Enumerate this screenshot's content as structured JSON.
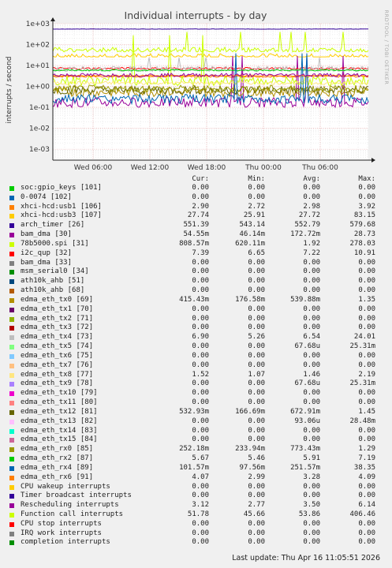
{
  "title": "Individual interrupts - by day",
  "ylabel": "interrupts / second",
  "side_label": "RRDTOOL / TOBI OETIKER",
  "footer": "Last update: Thu Apr 16 11:05:51 2026",
  "headers": {
    "cur": "Cur:",
    "min": "Min:",
    "avg": "Avg:",
    "max": "Max:"
  },
  "chart_data": {
    "type": "line",
    "title": "Individual interrupts - by day",
    "ylabel": "interrupts / second",
    "yscale": "log",
    "ylim": [
      0.0003,
      1000
    ],
    "y_ticks": [
      "1e+03",
      "1e+02",
      "1e+01",
      "1e+00",
      "1e-01",
      "1e-02",
      "1e-03"
    ],
    "y_tick_values": [
      1000,
      100,
      10,
      1,
      0.1,
      0.01,
      0.001
    ],
    "x_ticks": [
      "Wed 06:00",
      "Wed 12:00",
      "Wed 18:00",
      "Thu 00:00",
      "Thu 06:00"
    ],
    "grid": true,
    "legend": "bottom",
    "series": [
      {
        "name": "soc:gpio_keys [101]",
        "color": "#00cc00",
        "cur": "0.00",
        "min": "0.00",
        "avg": "0.00",
        "max": "0.00"
      },
      {
        "name": "0-0074 [102]",
        "color": "#0066b3",
        "cur": "0.00",
        "min": "0.00",
        "avg": "0.00",
        "max": "0.00"
      },
      {
        "name": "xhci-hcd:usb1 [106]",
        "color": "#ff8000",
        "cur": "2.90",
        "min": "2.72",
        "avg": "2.98",
        "max": "3.92"
      },
      {
        "name": "xhci-hcd:usb3 [107]",
        "color": "#ffcc00",
        "cur": "27.74",
        "min": "25.91",
        "avg": "27.72",
        "max": "83.15"
      },
      {
        "name": "arch_timer [26]",
        "color": "#330099",
        "cur": "551.39",
        "min": "543.14",
        "avg": "552.79",
        "max": "579.68"
      },
      {
        "name": "bam_dma [30]",
        "color": "#990099",
        "cur": "54.55m",
        "min": "46.14m",
        "avg": "172.72m",
        "max": "28.73"
      },
      {
        "name": "78b5000.spi [31]",
        "color": "#ccff00",
        "cur": "808.57m",
        "min": "620.11m",
        "avg": "1.92",
        "max": "278.03"
      },
      {
        "name": "i2c_qup [32]",
        "color": "#ff0000",
        "cur": "7.39",
        "min": "6.65",
        "avg": "7.22",
        "max": "10.91"
      },
      {
        "name": "bam_dma [33]",
        "color": "#808080",
        "cur": "0.00",
        "min": "0.00",
        "avg": "0.00",
        "max": "0.00"
      },
      {
        "name": "msm_serial0 [34]",
        "color": "#008f00",
        "cur": "0.00",
        "min": "0.00",
        "avg": "0.00",
        "max": "0.00"
      },
      {
        "name": "ath10k_ahb [51]",
        "color": "#00487d",
        "cur": "0.00",
        "min": "0.00",
        "avg": "0.00",
        "max": "0.00"
      },
      {
        "name": "ath10k_ahb [68]",
        "color": "#b35a00",
        "cur": "0.00",
        "min": "0.00",
        "avg": "0.00",
        "max": "0.00"
      },
      {
        "name": "edma_eth_tx0 [69]",
        "color": "#b38f00",
        "cur": "415.43m",
        "min": "176.58m",
        "avg": "539.88m",
        "max": "1.35"
      },
      {
        "name": "edma_eth_tx1 [70]",
        "color": "#6b006b",
        "cur": "0.00",
        "min": "0.00",
        "avg": "0.00",
        "max": "0.00"
      },
      {
        "name": "edma_eth_tx2 [71]",
        "color": "#8fb300",
        "cur": "0.00",
        "min": "0.00",
        "avg": "0.00",
        "max": "0.00"
      },
      {
        "name": "edma_eth_tx3 [72]",
        "color": "#b30000",
        "cur": "0.00",
        "min": "0.00",
        "avg": "0.00",
        "max": "0.00"
      },
      {
        "name": "edma_eth_tx4 [73]",
        "color": "#bebebe",
        "cur": "6.90",
        "min": "5.26",
        "avg": "6.54",
        "max": "24.01"
      },
      {
        "name": "edma_eth_tx5 [74]",
        "color": "#80ff80",
        "cur": "0.00",
        "min": "0.00",
        "avg": "67.68u",
        "max": "25.31m"
      },
      {
        "name": "edma_eth_tx6 [75]",
        "color": "#80c9ff",
        "cur": "0.00",
        "min": "0.00",
        "avg": "0.00",
        "max": "0.00"
      },
      {
        "name": "edma_eth_tx7 [76]",
        "color": "#ffc080",
        "cur": "0.00",
        "min": "0.00",
        "avg": "0.00",
        "max": "0.00"
      },
      {
        "name": "edma_eth_tx8 [77]",
        "color": "#ffe680",
        "cur": "1.52",
        "min": "1.07",
        "avg": "1.46",
        "max": "2.19"
      },
      {
        "name": "edma_eth_tx9 [78]",
        "color": "#aa80ff",
        "cur": "0.00",
        "min": "0.00",
        "avg": "67.68u",
        "max": "25.31m"
      },
      {
        "name": "edma_eth_tx10 [79]",
        "color": "#ee00cc",
        "cur": "0.00",
        "min": "0.00",
        "avg": "0.00",
        "max": "0.00"
      },
      {
        "name": "edma_eth_tx11 [80]",
        "color": "#ff8080",
        "cur": "0.00",
        "min": "0.00",
        "avg": "0.00",
        "max": "0.00"
      },
      {
        "name": "edma_eth_tx12 [81]",
        "color": "#666600",
        "cur": "532.93m",
        "min": "166.69m",
        "avg": "672.91m",
        "max": "1.45"
      },
      {
        "name": "edma_eth_tx13 [82]",
        "color": "#ffbfff",
        "cur": "0.00",
        "min": "0.00",
        "avg": "93.06u",
        "max": "28.48m"
      },
      {
        "name": "edma_eth_tx14 [83]",
        "color": "#00ffcc",
        "cur": "0.00",
        "min": "0.00",
        "avg": "0.00",
        "max": "0.00"
      },
      {
        "name": "edma_eth_tx15 [84]",
        "color": "#cc6699",
        "cur": "0.00",
        "min": "0.00",
        "avg": "0.00",
        "max": "0.00"
      },
      {
        "name": "edma_eth_rx0 [85]",
        "color": "#999900",
        "cur": "252.18m",
        "min": "233.94m",
        "avg": "773.43m",
        "max": "1.29"
      },
      {
        "name": "edma_eth_rx2 [87]",
        "color": "#00cc00",
        "cur": "5.67",
        "min": "5.46",
        "avg": "5.91",
        "max": "7.19"
      },
      {
        "name": "edma_eth_rx4 [89]",
        "color": "#0066b3",
        "cur": "101.57m",
        "min": "97.56m",
        "avg": "251.57m",
        "max": "38.35"
      },
      {
        "name": "edma_eth_rx6 [91]",
        "color": "#ff8000",
        "cur": "4.07",
        "min": "2.99",
        "avg": "3.28",
        "max": "4.09"
      },
      {
        "name": "CPU wakeup interrupts",
        "color": "#ffcc00",
        "cur": "0.00",
        "min": "0.00",
        "avg": "0.00",
        "max": "0.00"
      },
      {
        "name": "Timer broadcast interrupts",
        "color": "#330099",
        "cur": "0.00",
        "min": "0.00",
        "avg": "0.00",
        "max": "0.00"
      },
      {
        "name": "Rescheduling interrupts",
        "color": "#990099",
        "cur": "3.12",
        "min": "2.77",
        "avg": "3.50",
        "max": "6.14"
      },
      {
        "name": "Function call interrupts",
        "color": "#ccff00",
        "cur": "51.78",
        "min": "45.66",
        "avg": "53.86",
        "max": "406.46"
      },
      {
        "name": "CPU stop interrupts",
        "color": "#ff0000",
        "cur": "0.00",
        "min": "0.00",
        "avg": "0.00",
        "max": "0.00"
      },
      {
        "name": "IRQ work interrupts",
        "color": "#808080",
        "cur": "0.00",
        "min": "0.00",
        "avg": "0.00",
        "max": "0.00"
      },
      {
        "name": "completion interrupts",
        "color": "#008f00",
        "cur": "0.00",
        "min": "0.00",
        "avg": "0.00",
        "max": "0.00"
      }
    ]
  }
}
